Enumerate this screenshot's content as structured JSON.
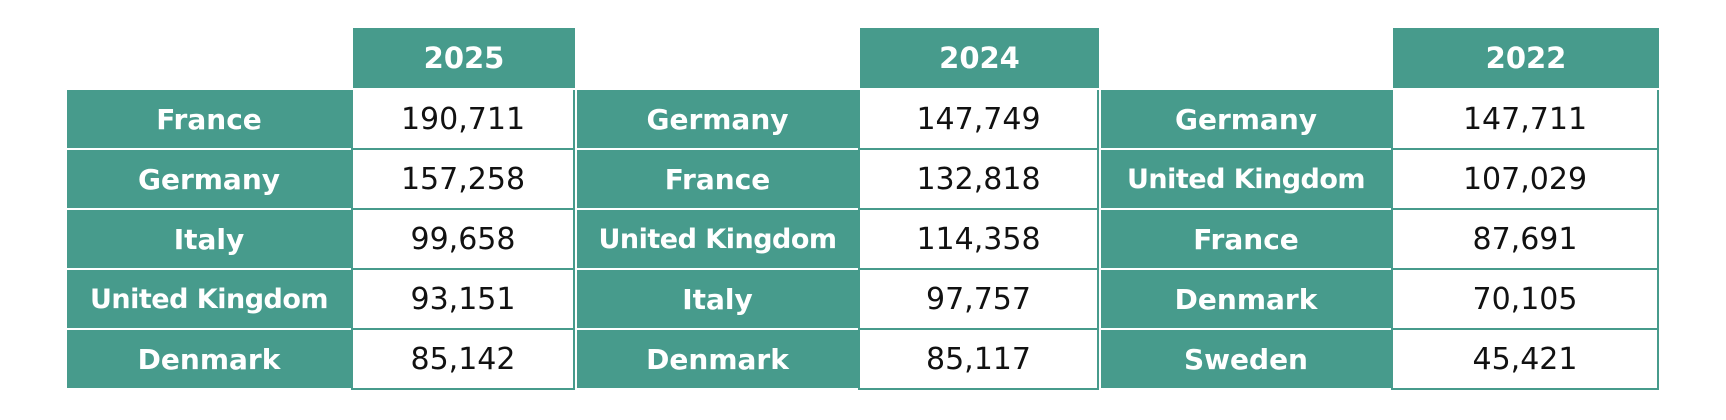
{
  "chart_data": [
    {
      "type": "table",
      "header": "2025",
      "rows": [
        {
          "country": "France",
          "value": "190,711"
        },
        {
          "country": "Germany",
          "value": "157,258"
        },
        {
          "country": "Italy",
          "value": "99,658"
        },
        {
          "country": "United Kingdom",
          "value": "93,151"
        },
        {
          "country": "Denmark",
          "value": "85,142"
        }
      ]
    },
    {
      "type": "table",
      "header": "2024",
      "rows": [
        {
          "country": "Germany",
          "value": "147,749"
        },
        {
          "country": "France",
          "value": "132,818"
        },
        {
          "country": "United Kingdom",
          "value": "114,358"
        },
        {
          "country": "Italy",
          "value": "97,757"
        },
        {
          "country": "Denmark",
          "value": "85,117"
        }
      ]
    },
    {
      "type": "table",
      "header": "2022",
      "rows": [
        {
          "country": "Germany",
          "value": "147,711"
        },
        {
          "country": "United Kingdom",
          "value": "107,029"
        },
        {
          "country": "France",
          "value": "87,691"
        },
        {
          "country": "Denmark",
          "value": "70,105"
        },
        {
          "country": "Sweden",
          "value": "45,421"
        }
      ]
    }
  ],
  "colors": {
    "header_bg": "#479b8c",
    "cell_bg": "#ffffff",
    "text_on_teal": "#ffffff",
    "text_value": "#111111"
  }
}
